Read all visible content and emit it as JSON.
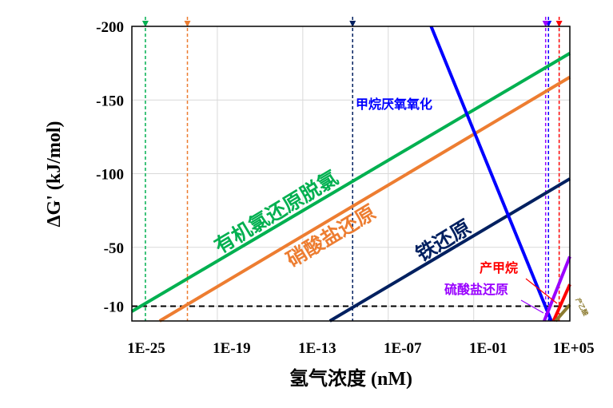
{
  "chart_data": {
    "type": "line",
    "xlabel": "氢气浓度 (nM)",
    "ylabel": "ΔG' (kJ/mol)",
    "xscale": "log",
    "xlim_log10": [
      -25,
      5.75
    ],
    "ylim": [
      0,
      -200
    ],
    "x_ticks": [
      {
        "v": -25,
        "label": "1E-25"
      },
      {
        "v": -19,
        "label": "1E-19"
      },
      {
        "v": -13,
        "label": "1E-13"
      },
      {
        "v": -7,
        "label": "1E-07"
      },
      {
        "v": -1,
        "label": "1E-01"
      },
      {
        "v": 5,
        "label": "1E+05"
      }
    ],
    "y_ticks": [
      {
        "v": -200,
        "label": "-200"
      },
      {
        "v": -150,
        "label": "-150"
      },
      {
        "v": -100,
        "label": "-100"
      },
      {
        "v": -50,
        "label": "-50"
      },
      {
        "v": -10,
        "label": "-10"
      }
    ],
    "threshold": {
      "value": -10,
      "color": "#000000"
    },
    "series": [
      {
        "name": "有机氯还原脱氯",
        "color": "#00b050",
        "points_log10x": [
          [
            -25,
            -6.5
          ],
          [
            5.75,
            -181.7
          ]
        ],
        "threshold_log10x": -24.05
      },
      {
        "name": "硝酸盐还原",
        "color": "#ed7d31",
        "points_log10x": [
          [
            -23.05,
            0
          ],
          [
            5.75,
            -165.5
          ]
        ],
        "threshold_log10x": -21.1
      },
      {
        "name": "铁还原",
        "color": "#002060",
        "points_log10x": [
          [
            -11.1,
            0
          ],
          [
            5.75,
            -96.5
          ]
        ],
        "threshold_log10x": -9.5
      },
      {
        "name": "甲烷厌氧氧化",
        "color": "#0000ff",
        "points_log10x": [
          [
            -3.99,
            -200
          ],
          [
            4.45,
            0
          ]
        ],
        "threshold_log10x": 4.25
      },
      {
        "name": "硫酸盐还原",
        "color": "#9900ff",
        "points_log10x": [
          [
            3.95,
            0
          ],
          [
            5.75,
            -43.7
          ]
        ],
        "threshold_log10x": 4.05
      },
      {
        "name": "产甲烷",
        "color": "#ff0000",
        "points_log10x": [
          [
            4.6,
            0
          ],
          [
            5.75,
            -24.8
          ]
        ],
        "threshold_log10x": 5.0
      },
      {
        "name": "产乙酸",
        "color": "#8b7a2e",
        "points_log10x": [
          [
            4.75,
            0
          ],
          [
            5.75,
            -11
          ]
        ],
        "threshold_log10x": null
      }
    ]
  }
}
